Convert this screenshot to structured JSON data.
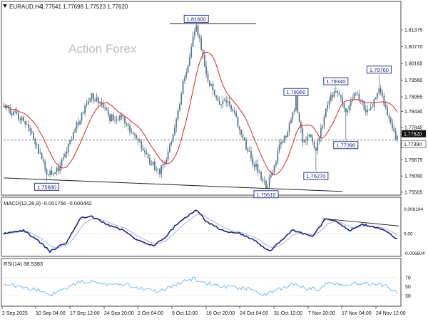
{
  "symbol_header": {
    "symbol": "EURAUD,H4",
    "ohlc": "1.77541 1.77698 1.77523 1.77620"
  },
  "watermark": "Action Forex",
  "chart_data": [
    {
      "type": "candlestick",
      "panel": "price",
      "ylim": [
        1.7545,
        1.821
      ],
      "y_ticks": [
        "1.81375",
        "1.80770",
        "1.80165",
        "1.79560",
        "1.78955",
        "1.78430",
        "1.77845",
        "1.77260",
        "1.76675",
        "1.76090",
        "1.75505"
      ],
      "last_price": "1.77620",
      "reference_price": "1.77390",
      "moving_average_color": "#e02020",
      "candle_color": "#5b7b8c",
      "x_ticks": [
        "2 Sep 2025",
        "10 Sep 04:00",
        "17 Sep 12:00",
        "24 Sep 20:00",
        "2 Oct 04:00",
        "9 Oct 12:00",
        "16 Oct 20:00",
        "24 Oct 04:00",
        "31 Oct 12:00",
        "7 Nov 20:00",
        "17 Nov 04:00",
        "24 Nov 12:00"
      ],
      "anchors": [
        [
          0,
          1.786
        ],
        [
          10,
          1.782
        ],
        [
          18,
          1.775
        ],
        [
          26,
          1.762
        ],
        [
          34,
          1.764
        ],
        [
          44,
          1.779
        ],
        [
          52,
          1.79
        ],
        [
          58,
          1.788
        ],
        [
          64,
          1.782
        ],
        [
          72,
          1.782
        ],
        [
          80,
          1.774
        ],
        [
          88,
          1.766
        ],
        [
          94,
          1.763
        ],
        [
          98,
          1.767
        ],
        [
          102,
          1.776
        ],
        [
          108,
          1.794
        ],
        [
          112,
          1.805
        ],
        [
          116,
          1.816
        ],
        [
          122,
          1.798
        ],
        [
          128,
          1.788
        ],
        [
          134,
          1.788
        ],
        [
          140,
          1.782
        ],
        [
          146,
          1.771
        ],
        [
          152,
          1.764
        ],
        [
          158,
          1.757
        ],
        [
          162,
          1.762
        ],
        [
          166,
          1.772
        ],
        [
          170,
          1.776
        ],
        [
          174,
          1.783
        ],
        [
          176,
          1.789
        ],
        [
          180,
          1.773
        ],
        [
          184,
          1.776
        ],
        [
          188,
          1.77
        ],
        [
          192,
          1.78
        ],
        [
          196,
          1.789
        ],
        [
          200,
          1.792
        ],
        [
          206,
          1.785
        ],
        [
          212,
          1.792
        ],
        [
          218,
          1.785
        ],
        [
          222,
          1.786
        ],
        [
          226,
          1.793
        ],
        [
          230,
          1.785
        ],
        [
          234,
          1.7775
        ],
        [
          236,
          1.775
        ]
      ],
      "price_labels": [
        {
          "text": "1.81600",
          "bar": 116,
          "price": 1.816,
          "pos": "above"
        },
        {
          "text": "1.78950",
          "bar": 176,
          "price": 1.7895,
          "pos": "above"
        },
        {
          "text": "1.79340",
          "bar": 200,
          "price": 1.7934,
          "pos": "above"
        },
        {
          "text": "1.79760",
          "bar": 226,
          "price": 1.7976,
          "pos": "above"
        },
        {
          "text": "1.75880",
          "bar": 26,
          "price": 1.7588,
          "pos": "below"
        },
        {
          "text": "1.75610",
          "bar": 158,
          "price": 1.7561,
          "pos": "below"
        },
        {
          "text": "1.76270",
          "bar": 188,
          "price": 1.7627,
          "pos": "below"
        },
        {
          "text": "1.77390",
          "bar": 206,
          "price": 1.7739,
          "pos": "below"
        }
      ],
      "trendlines": [
        {
          "from": [
            0,
            1.7602
          ],
          "to": [
            204,
            1.7553
          ]
        },
        {
          "from": [
            100,
            1.816
          ],
          "to": [
            152,
            1.816
          ]
        }
      ]
    },
    {
      "type": "line",
      "panel": "macd",
      "title": "MACD(12,26,9) -0.001756 -0.000442",
      "y_ticks": [
        "0.008194",
        "0.00",
        "-0.006604"
      ],
      "ylim": [
        -0.0072,
        0.0088
      ],
      "macd_color": "#1a237e",
      "signal_color": "#9fa8da",
      "anchors": [
        [
          0,
          0.0
        ],
        [
          12,
          0.001
        ],
        [
          20,
          -0.002
        ],
        [
          28,
          -0.006
        ],
        [
          38,
          -0.003
        ],
        [
          46,
          0.005
        ],
        [
          52,
          0.006
        ],
        [
          62,
          0.003
        ],
        [
          72,
          0.001
        ],
        [
          80,
          -0.002
        ],
        [
          90,
          -0.004
        ],
        [
          96,
          -0.002
        ],
        [
          104,
          0.003
        ],
        [
          116,
          0.008
        ],
        [
          122,
          0.004
        ],
        [
          132,
          0.001
        ],
        [
          142,
          0.0
        ],
        [
          150,
          -0.002
        ],
        [
          160,
          -0.006
        ],
        [
          166,
          -0.003
        ],
        [
          174,
          0.001
        ],
        [
          180,
          0.0
        ],
        [
          186,
          -0.001
        ],
        [
          194,
          0.005
        ],
        [
          200,
          0.004
        ],
        [
          208,
          0.001
        ],
        [
          216,
          0.003
        ],
        [
          224,
          0.002
        ],
        [
          230,
          0.001
        ],
        [
          236,
          -0.0017
        ]
      ],
      "trendline": {
        "from": [
          192,
          0.005
        ],
        "to": [
          238,
          0.0025
        ]
      }
    },
    {
      "type": "line",
      "panel": "rsi",
      "title": "RSI(14) 38.5383",
      "y_ticks": [
        "70",
        "50",
        "30"
      ],
      "ylim": [
        10,
        90
      ],
      "rsi_color": "#64b5f6",
      "anchors": [
        [
          0,
          55
        ],
        [
          12,
          50
        ],
        [
          22,
          40
        ],
        [
          28,
          32
        ],
        [
          36,
          45
        ],
        [
          46,
          62
        ],
        [
          54,
          60
        ],
        [
          64,
          52
        ],
        [
          74,
          55
        ],
        [
          84,
          45
        ],
        [
          94,
          40
        ],
        [
          104,
          55
        ],
        [
          114,
          68
        ],
        [
          122,
          58
        ],
        [
          132,
          50
        ],
        [
          142,
          48
        ],
        [
          150,
          42
        ],
        [
          158,
          32
        ],
        [
          166,
          45
        ],
        [
          174,
          56
        ],
        [
          182,
          46
        ],
        [
          190,
          45
        ],
        [
          196,
          60
        ],
        [
          204,
          54
        ],
        [
          214,
          58
        ],
        [
          222,
          55
        ],
        [
          230,
          52
        ],
        [
          236,
          38.5
        ]
      ]
    }
  ]
}
